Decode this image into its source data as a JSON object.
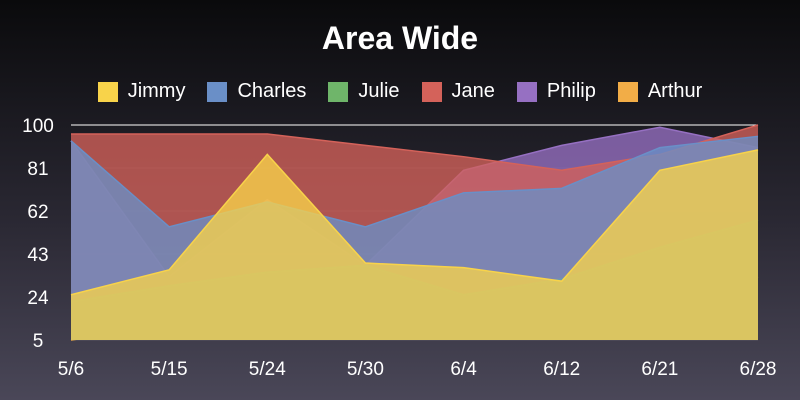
{
  "chart_data": {
    "type": "area",
    "title": "Area Wide",
    "xlabel": "",
    "ylabel": "",
    "categories": [
      "5/6",
      "5/15",
      "5/24",
      "5/30",
      "6/4",
      "6/12",
      "6/21",
      "6/28"
    ],
    "yticks": [
      5,
      24,
      43,
      62,
      81,
      100
    ],
    "ylim": [
      5,
      100
    ],
    "legend_position": "top",
    "grid": true,
    "series": [
      {
        "name": "Jimmy",
        "color": "#f8d34a",
        "values": [
          25,
          36,
          87,
          39,
          37,
          31,
          80,
          89
        ]
      },
      {
        "name": "Charles",
        "color": "#6a8fc7",
        "values": [
          93,
          55,
          66,
          55,
          70,
          72,
          90,
          95
        ]
      },
      {
        "name": "Julie",
        "color": "#6fb56a",
        "values": [
          22,
          29,
          35,
          38,
          25,
          32,
          46,
          58
        ]
      },
      {
        "name": "Jane",
        "color": "#d4625a",
        "values": [
          96,
          96,
          96,
          91,
          86,
          80,
          87,
          100
        ]
      },
      {
        "name": "Philip",
        "color": "#9670c2",
        "values": [
          93,
          33,
          67,
          38,
          80,
          91,
          99,
          90
        ]
      },
      {
        "name": "Arthur",
        "color": "#f2ad47",
        "values": [
          5,
          11,
          13,
          12,
          6,
          16,
          23,
          33
        ]
      }
    ]
  }
}
